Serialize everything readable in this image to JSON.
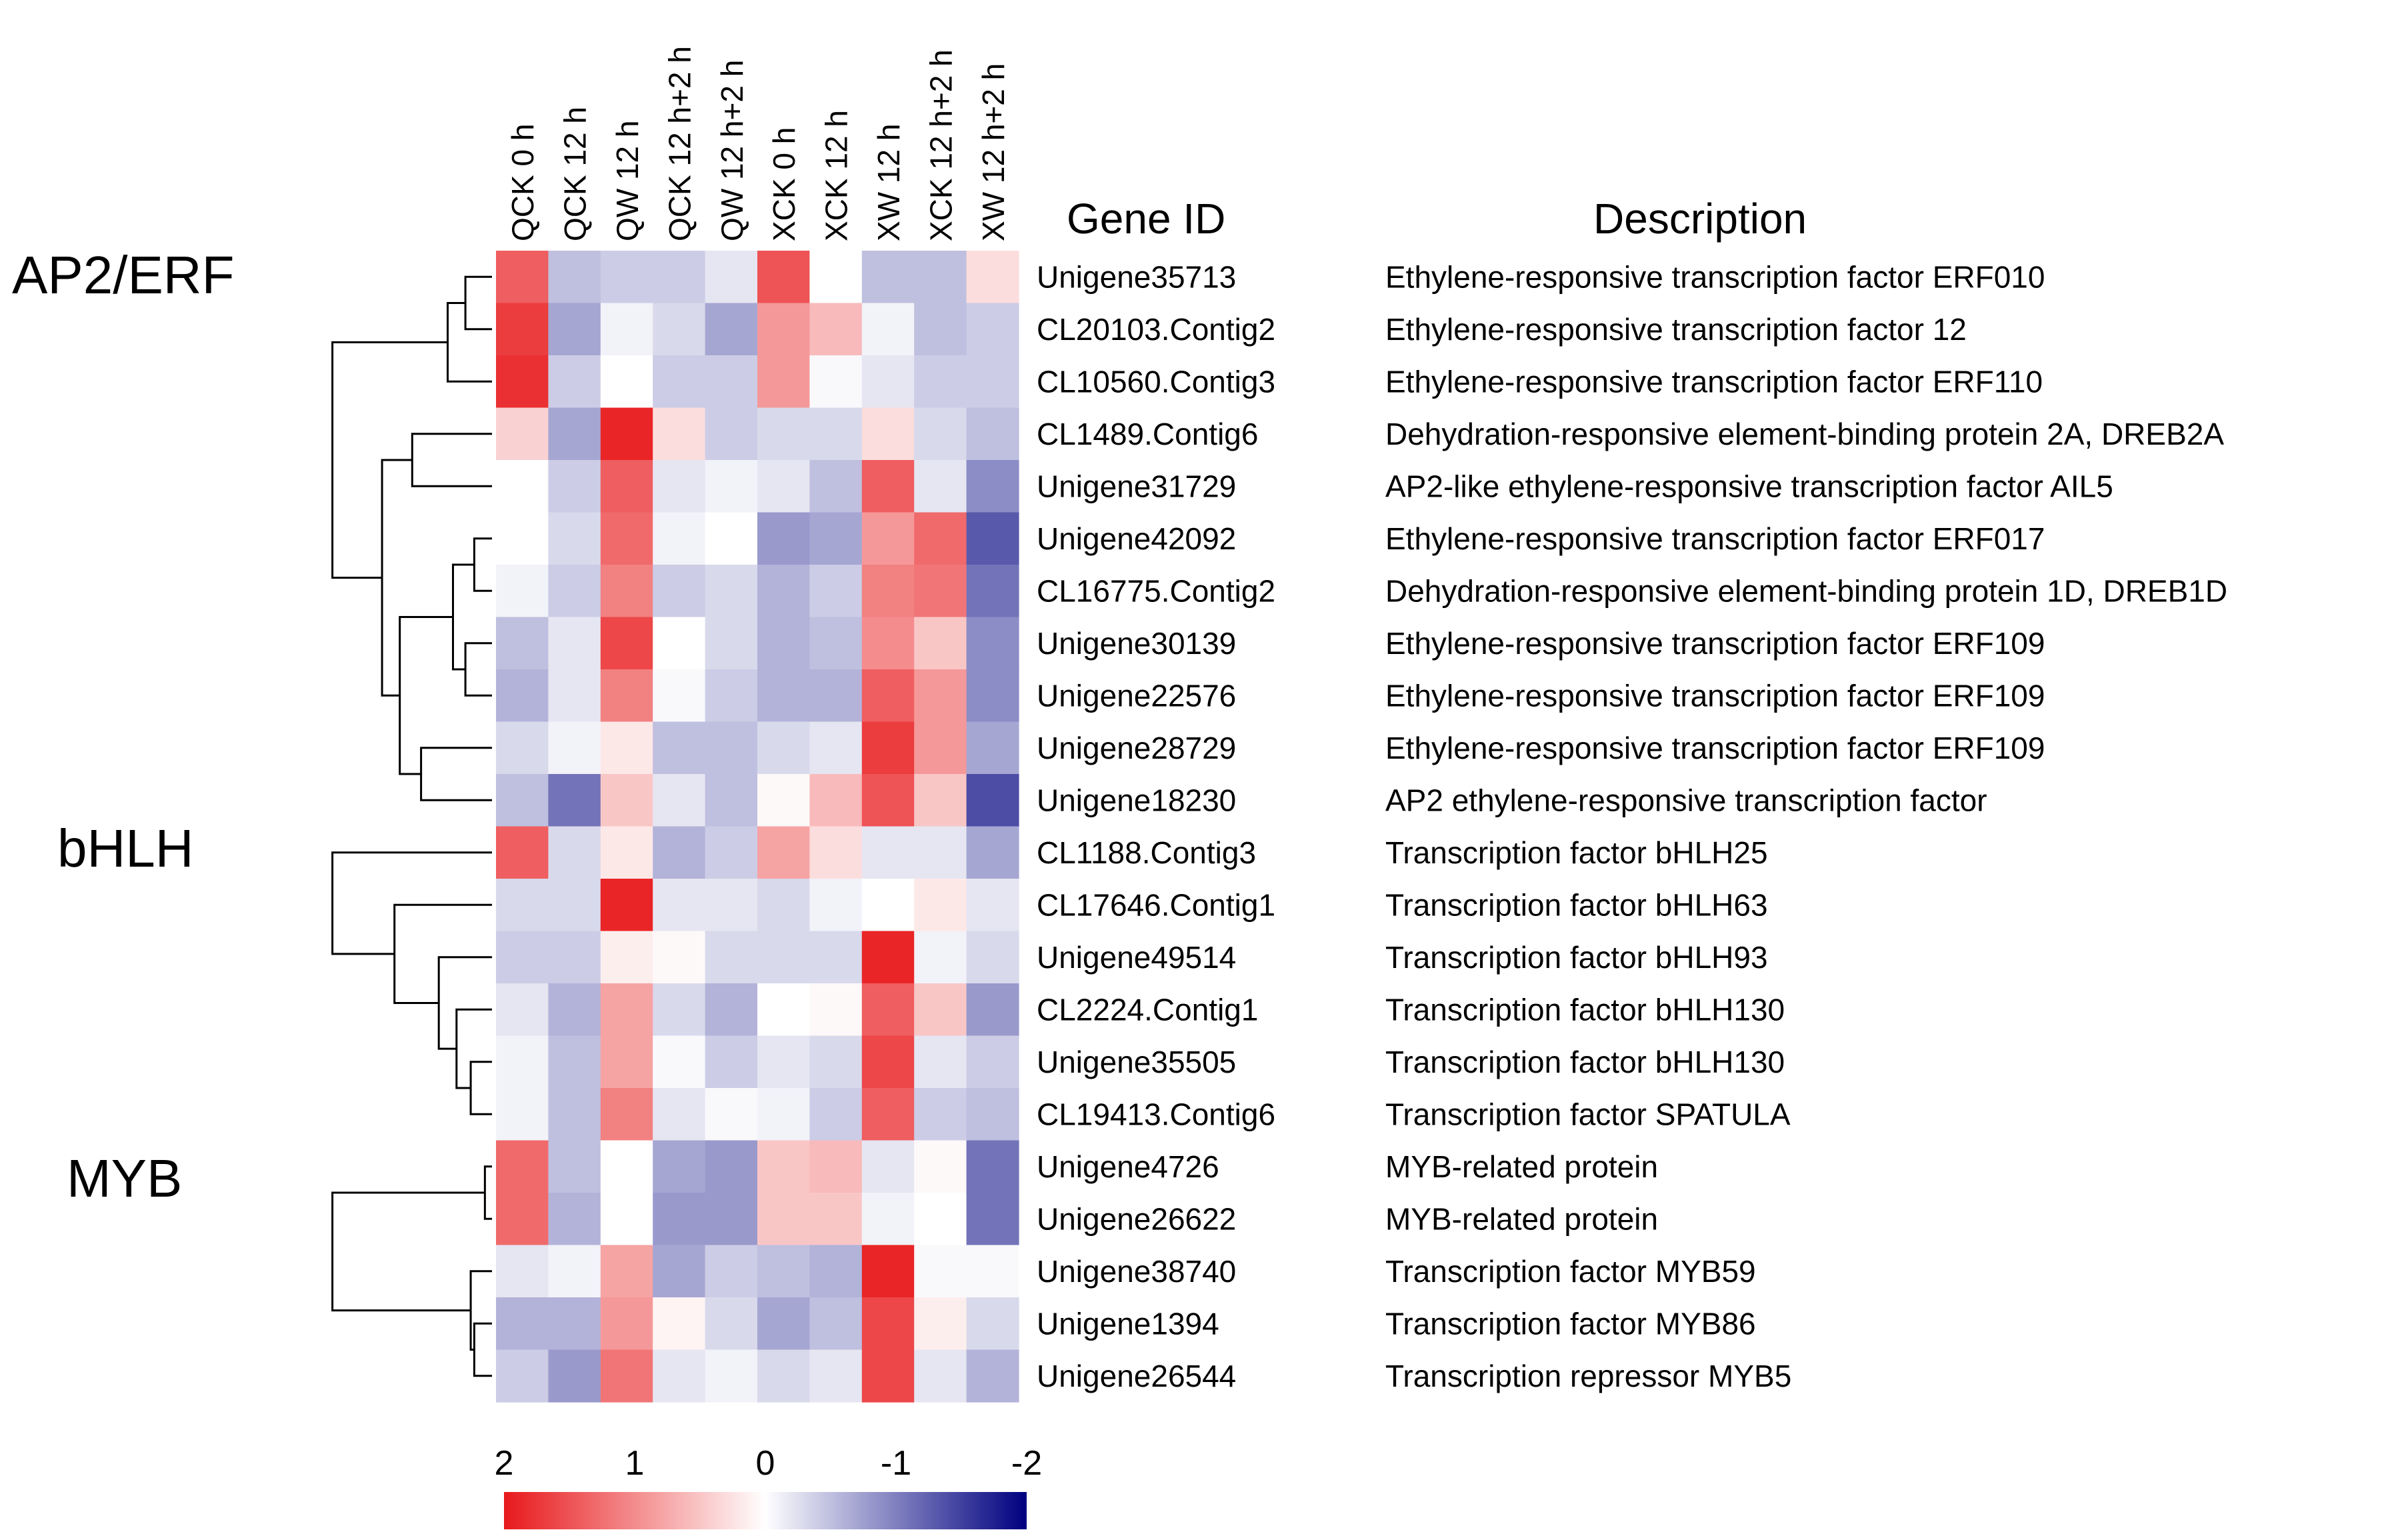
{
  "chart_data": {
    "type": "heatmap",
    "title": "",
    "columns": [
      "QCK 0 h",
      "QCK 12 h",
      "QW 12 h",
      "QCK 12 h+2 h",
      "QW 12 h+2 h",
      "XCK 0 h",
      "XCK 12 h",
      "XW 12 h",
      "XCK 12 h+2 h",
      "XW 12 h+2 h"
    ],
    "gene_id_header": "Gene ID",
    "description_header": "Description",
    "rows": [
      {
        "id": "Unigene35713",
        "description": "Ethylene-responsive transcription factor ERF010",
        "values": [
          1.4,
          -0.5,
          -0.4,
          -0.4,
          -0.2,
          1.5,
          0.0,
          -0.5,
          -0.5,
          0.3
        ]
      },
      {
        "id": "CL20103.Contig2",
        "description": "Ethylene-responsive transcription factor 12",
        "values": [
          1.7,
          -0.7,
          -0.1,
          -0.3,
          -0.7,
          0.9,
          0.6,
          -0.1,
          -0.5,
          -0.4
        ]
      },
      {
        "id": "CL10560.Contig3",
        "description": "Ethylene-responsive transcription factor ERF110",
        "values": [
          1.8,
          -0.4,
          0.0,
          -0.4,
          -0.4,
          0.9,
          -0.05,
          -0.2,
          -0.4,
          -0.4
        ]
      },
      {
        "id": "CL1489.Contig6",
        "description": "Dehydration-responsive element-binding protein 2A, DREB2A",
        "values": [
          0.4,
          -0.7,
          1.9,
          0.3,
          -0.4,
          -0.3,
          -0.3,
          0.3,
          -0.3,
          -0.5
        ]
      },
      {
        "id": "Unigene31729",
        "description": "AP2-like ethylene-responsive transcription factor AIL5",
        "values": [
          0.0,
          -0.4,
          1.4,
          -0.2,
          -0.1,
          -0.2,
          -0.5,
          1.4,
          -0.2,
          -0.9
        ]
      },
      {
        "id": "Unigene42092",
        "description": "Ethylene-responsive transcription factor ERF017",
        "values": [
          0.0,
          -0.3,
          1.3,
          -0.1,
          0.0,
          -0.8,
          -0.7,
          0.9,
          1.3,
          -1.3
        ]
      },
      {
        "id": "CL16775.Contig2",
        "description": "Dehydration-responsive element-binding protein 1D, DREB1D",
        "values": [
          -0.1,
          -0.4,
          1.1,
          -0.4,
          -0.3,
          -0.6,
          -0.4,
          1.1,
          1.2,
          -1.1
        ]
      },
      {
        "id": "Unigene30139",
        "description": "Ethylene-responsive transcription factor ERF109",
        "values": [
          -0.5,
          -0.2,
          1.6,
          0.0,
          -0.3,
          -0.6,
          -0.5,
          1.0,
          0.5,
          -0.9
        ]
      },
      {
        "id": "Unigene22576",
        "description": "Ethylene-responsive transcription factor ERF109",
        "values": [
          -0.6,
          -0.2,
          1.1,
          -0.05,
          -0.4,
          -0.6,
          -0.6,
          1.4,
          0.9,
          -0.9
        ]
      },
      {
        "id": "Unigene28729",
        "description": "Ethylene-responsive transcription factor ERF109",
        "values": [
          -0.3,
          -0.1,
          0.2,
          -0.5,
          -0.5,
          -0.3,
          -0.2,
          1.7,
          0.9,
          -0.7
        ]
      },
      {
        "id": "Unigene18230",
        "description": "AP2 ethylene-responsive transcription factor",
        "values": [
          -0.5,
          -1.1,
          0.5,
          -0.2,
          -0.5,
          0.05,
          0.6,
          1.5,
          0.5,
          -1.4
        ]
      },
      {
        "id": "CL1188.Contig3",
        "description": "Transcription factor bHLH25",
        "values": [
          1.4,
          -0.3,
          0.2,
          -0.6,
          -0.4,
          0.8,
          0.3,
          -0.2,
          -0.2,
          -0.7
        ]
      },
      {
        "id": "CL17646.Contig1",
        "description": "Transcription factor bHLH63",
        "values": [
          -0.3,
          -0.3,
          1.9,
          -0.2,
          -0.2,
          -0.3,
          -0.1,
          0.0,
          0.2,
          -0.2
        ]
      },
      {
        "id": "Unigene49514",
        "description": "Transcription factor bHLH93",
        "values": [
          -0.4,
          -0.4,
          0.15,
          0.05,
          -0.3,
          -0.3,
          -0.3,
          1.9,
          -0.1,
          -0.3
        ]
      },
      {
        "id": "CL2224.Contig1",
        "description": "Transcription factor bHLH130",
        "values": [
          -0.2,
          -0.6,
          0.8,
          -0.3,
          -0.6,
          0.0,
          0.05,
          1.4,
          0.5,
          -0.8
        ]
      },
      {
        "id": "Unigene35505",
        "description": "Transcription factor bHLH130",
        "values": [
          -0.1,
          -0.5,
          0.8,
          -0.05,
          -0.4,
          -0.2,
          -0.3,
          1.6,
          -0.2,
          -0.4
        ]
      },
      {
        "id": "CL19413.Contig6",
        "description": "Transcription factor SPATULA",
        "values": [
          -0.1,
          -0.5,
          1.1,
          -0.2,
          -0.05,
          -0.1,
          -0.4,
          1.4,
          -0.4,
          -0.5
        ]
      },
      {
        "id": "Unigene4726",
        "description": "MYB-related protein",
        "values": [
          1.3,
          -0.5,
          0.0,
          -0.7,
          -0.8,
          0.5,
          0.6,
          -0.2,
          0.05,
          -1.1
        ]
      },
      {
        "id": "Unigene26622",
        "description": "MYB-related protein",
        "values": [
          1.3,
          -0.6,
          0.0,
          -0.8,
          -0.8,
          0.5,
          0.5,
          -0.1,
          0.0,
          -1.1
        ]
      },
      {
        "id": "Unigene38740",
        "description": "Transcription factor MYB59",
        "values": [
          -0.2,
          -0.1,
          0.8,
          -0.7,
          -0.4,
          -0.5,
          -0.6,
          1.9,
          -0.05,
          -0.05
        ]
      },
      {
        "id": "Unigene1394",
        "description": "Transcription factor MYB86",
        "values": [
          -0.6,
          -0.6,
          0.9,
          0.1,
          -0.3,
          -0.7,
          -0.5,
          1.6,
          0.15,
          -0.3
        ]
      },
      {
        "id": "Unigene26544",
        "description": "Transcription repressor MYB5",
        "values": [
          -0.4,
          -0.8,
          1.2,
          -0.2,
          -0.1,
          -0.3,
          -0.2,
          1.6,
          -0.2,
          -0.6
        ]
      }
    ],
    "groups": [
      {
        "label": "AP2/ERF",
        "first_row": 0,
        "last_row": 10
      },
      {
        "label": "bHLH",
        "first_row": 11,
        "last_row": 16
      },
      {
        "label": "MYB",
        "first_row": 17,
        "last_row": 21
      }
    ],
    "dendrogram": [
      {
        "children": [
          0,
          1
        ],
        "height": 0.15
      },
      {
        "children": [
          -1,
          2
        ],
        "height": 0.25
      },
      {
        "children": [
          3,
          4
        ],
        "height": 0.45
      },
      {
        "children": [
          5,
          6
        ],
        "height": 0.1
      },
      {
        "children": [
          7,
          8
        ],
        "height": 0.15
      },
      {
        "children": [
          -4,
          -5
        ],
        "height": 0.22
      },
      {
        "children": [
          9,
          10
        ],
        "height": 0.4
      },
      {
        "children": [
          -6,
          -7
        ],
        "height": 0.52
      },
      {
        "children": [
          -3,
          -8
        ],
        "height": 0.62
      },
      {
        "children": [
          -2,
          -9
        ],
        "height": 0.9
      },
      {
        "children": [
          15,
          16
        ],
        "height": 0.12
      },
      {
        "children": [
          14,
          -11
        ],
        "height": 0.2
      },
      {
        "children": [
          13,
          -12
        ],
        "height": 0.3
      },
      {
        "children": [
          12,
          -13
        ],
        "height": 0.55
      },
      {
        "children": [
          11,
          -14
        ],
        "height": 0.9
      },
      {
        "children": [
          17,
          18
        ],
        "height": 0.04
      },
      {
        "children": [
          20,
          21
        ],
        "height": 0.1
      },
      {
        "children": [
          19,
          -17
        ],
        "height": 0.12
      },
      {
        "children": [
          -16,
          -18
        ],
        "height": 0.9
      }
    ],
    "color_scale": {
      "min": -2,
      "max": 2,
      "ticks": [
        "2",
        "1",
        "0",
        "-1",
        "-2"
      ],
      "colors": {
        "high": "#e8191c",
        "mid": "#ffffff",
        "low": "#000080"
      }
    }
  }
}
